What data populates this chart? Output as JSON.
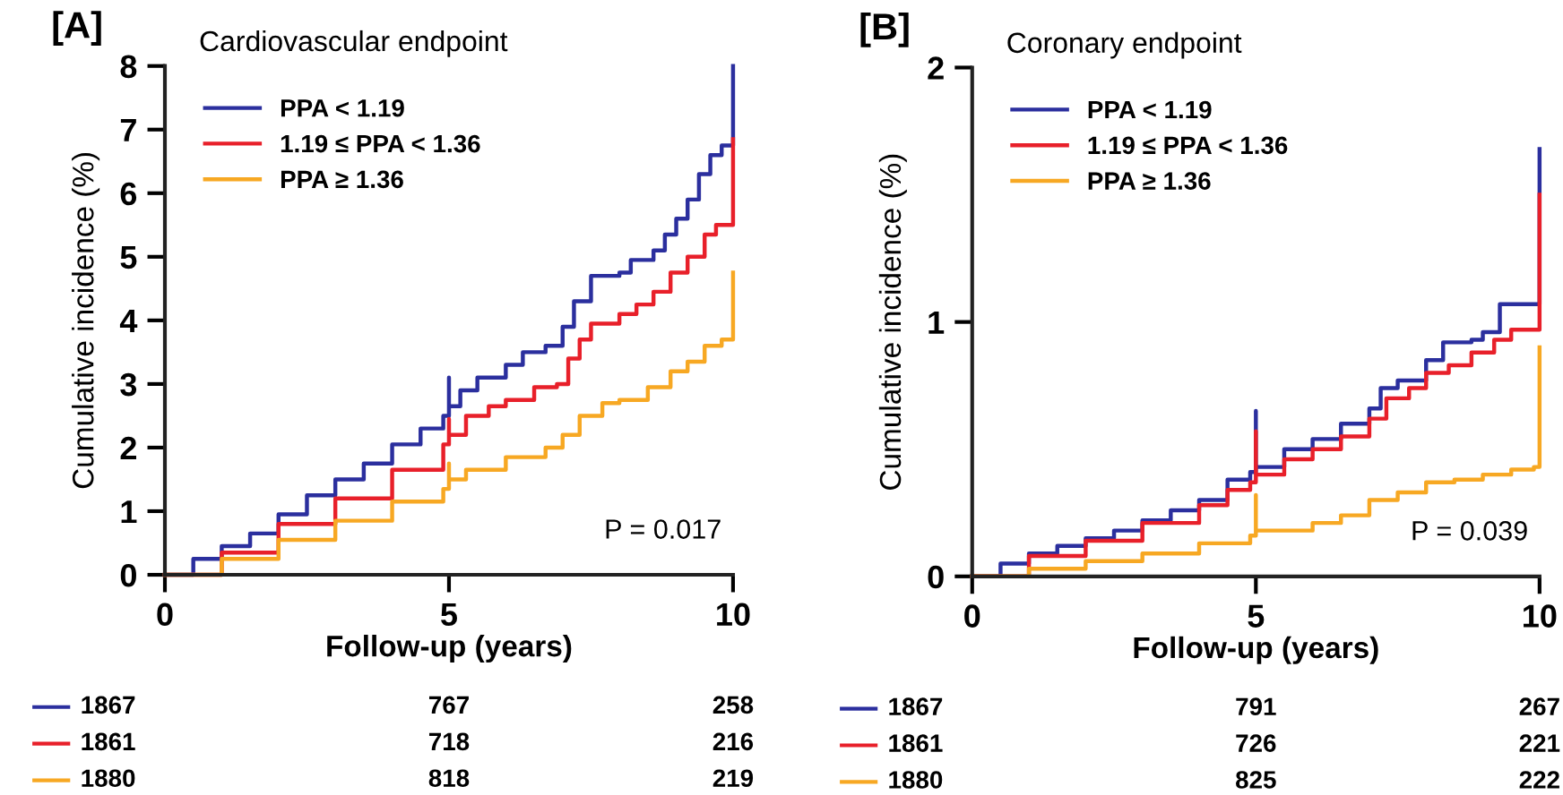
{
  "chart_data": [
    {
      "type": "step",
      "title": "Cardiovascular endpoint",
      "xlabel": "Follow-up (years)",
      "ylabel": "Cumulative incidence (%)",
      "xlim": [
        0,
        10
      ],
      "xticks": [
        0,
        5,
        10
      ],
      "ylim": [
        0,
        8
      ],
      "yticks": [
        0,
        1,
        2,
        3,
        4,
        5,
        6,
        7,
        8
      ],
      "grid": false,
      "legend": "top left",
      "line_style": "solid",
      "marker": "none",
      "annotations": [
        "[A]",
        "P = 0.017",
        "1867",
        "767",
        "258",
        "1861",
        "718",
        "216",
        "1880",
        "818",
        "219"
      ],
      "series": [
        {
          "name": "PPA < 1.19",
          "color": "#2b2f9e",
          "x": [
            0,
            0.5,
            1,
            1.5,
            2,
            2.5,
            3,
            3.5,
            4,
            4.5,
            4.9,
            5,
            5,
            5,
            5.2,
            5.5,
            6,
            6.3,
            6.7,
            7,
            7.2,
            7.5,
            8,
            8.2,
            8.6,
            8.8,
            9,
            9.2,
            9.4,
            9.6,
            9.8,
            10,
            10,
            10
          ],
          "values": [
            0,
            0.25,
            0.45,
            0.65,
            0.95,
            1.25,
            1.5,
            1.75,
            2.05,
            2.3,
            2.5,
            2.5,
            3.1,
            2.65,
            2.9,
            3.1,
            3.3,
            3.5,
            3.6,
            3.9,
            4.3,
            4.7,
            4.75,
            4.95,
            5.1,
            5.35,
            5.6,
            5.9,
            6.3,
            6.6,
            6.75,
            6.75,
            7.0,
            8.0
          ]
        },
        {
          "name": "1.19 ≤ PPA < 1.36",
          "color": "#e8202a",
          "x": [
            0,
            1,
            2,
            3,
            4,
            4.9,
            5,
            5,
            5,
            5.3,
            5.7,
            6,
            6.5,
            6.9,
            7.1,
            7.3,
            7.5,
            8,
            8.3,
            8.6,
            8.9,
            9.2,
            9.5,
            9.7,
            10,
            10,
            10
          ],
          "values": [
            0,
            0.35,
            0.8,
            1.2,
            1.65,
            2.05,
            2.1,
            2.45,
            2.2,
            2.5,
            2.65,
            2.75,
            2.95,
            3.0,
            3.4,
            3.7,
            3.95,
            4.1,
            4.25,
            4.45,
            4.75,
            5.0,
            5.35,
            5.5,
            5.55,
            5.9,
            6.85
          ]
        },
        {
          "name": "PPA ≥ 1.36",
          "color": "#f7a823",
          "x": [
            0,
            1,
            2,
            3,
            4,
            4.9,
            5,
            5,
            5,
            5.3,
            6,
            6.7,
            7,
            7.3,
            7.7,
            8,
            8.5,
            8.9,
            9.2,
            9.5,
            9.8,
            10,
            10,
            10
          ],
          "values": [
            0,
            0.25,
            0.55,
            0.85,
            1.15,
            1.35,
            1.4,
            1.75,
            1.5,
            1.65,
            1.85,
            2.0,
            2.2,
            2.5,
            2.7,
            2.75,
            2.95,
            3.2,
            3.35,
            3.6,
            3.7,
            3.75,
            4.0,
            4.75
          ]
        }
      ]
    },
    {
      "type": "step",
      "title": "Coronary endpoint",
      "xlabel": "Follow-up (years)",
      "ylabel": "Cumulative incidence (%)",
      "xlim": [
        0,
        10
      ],
      "xticks": [
        0,
        5,
        10
      ],
      "ylim": [
        0,
        2
      ],
      "yticks": [
        0,
        1,
        2
      ],
      "grid": false,
      "legend": "top left",
      "line_style": "solid",
      "marker": "none",
      "annotations": [
        "[B]",
        "P = 0.039",
        "1867",
        "791",
        "267",
        "1861",
        "726",
        "221",
        "1880",
        "825",
        "222"
      ],
      "series": [
        {
          "name": "PPA < 1.19",
          "color": "#2b2f9e",
          "x": [
            0,
            0.5,
            1,
            1.5,
            2,
            2.5,
            3,
            3.5,
            4,
            4.5,
            4.9,
            5,
            5,
            5,
            5.5,
            6,
            6.5,
            7,
            7.2,
            7.5,
            8,
            8.3,
            8.8,
            9,
            9.3,
            10,
            10,
            10
          ],
          "values": [
            0,
            0.05,
            0.09,
            0.12,
            0.15,
            0.18,
            0.22,
            0.26,
            0.3,
            0.38,
            0.41,
            0.42,
            0.65,
            0.43,
            0.5,
            0.54,
            0.6,
            0.66,
            0.74,
            0.77,
            0.85,
            0.92,
            0.93,
            0.96,
            1.07,
            1.07,
            1.25,
            1.68
          ]
        },
        {
          "name": "1.19 ≤ PPA < 1.36",
          "color": "#e8202a",
          "x": [
            0,
            1,
            2,
            3,
            4,
            4.5,
            4.9,
            5,
            5,
            5,
            5.5,
            6,
            6.5,
            7,
            7.3,
            7.7,
            8,
            8.4,
            8.8,
            9.2,
            9.5,
            10,
            10,
            10
          ],
          "values": [
            0,
            0.08,
            0.14,
            0.21,
            0.28,
            0.34,
            0.37,
            0.38,
            0.57,
            0.4,
            0.46,
            0.5,
            0.55,
            0.62,
            0.7,
            0.74,
            0.8,
            0.83,
            0.88,
            0.93,
            0.97,
            0.97,
            1.1,
            1.5
          ]
        },
        {
          "name": "PPA ≥ 1.36",
          "color": "#f7a823",
          "x": [
            0,
            1,
            2,
            3,
            4,
            4.9,
            5,
            5,
            5,
            6,
            6.5,
            7,
            7.5,
            8,
            8.5,
            9,
            9.5,
            9.9,
            10,
            10
          ],
          "values": [
            0,
            0.03,
            0.06,
            0.09,
            0.13,
            0.16,
            0.17,
            0.32,
            0.18,
            0.21,
            0.24,
            0.3,
            0.33,
            0.37,
            0.38,
            0.4,
            0.42,
            0.43,
            0.48,
            0.9
          ]
        }
      ]
    }
  ]
}
